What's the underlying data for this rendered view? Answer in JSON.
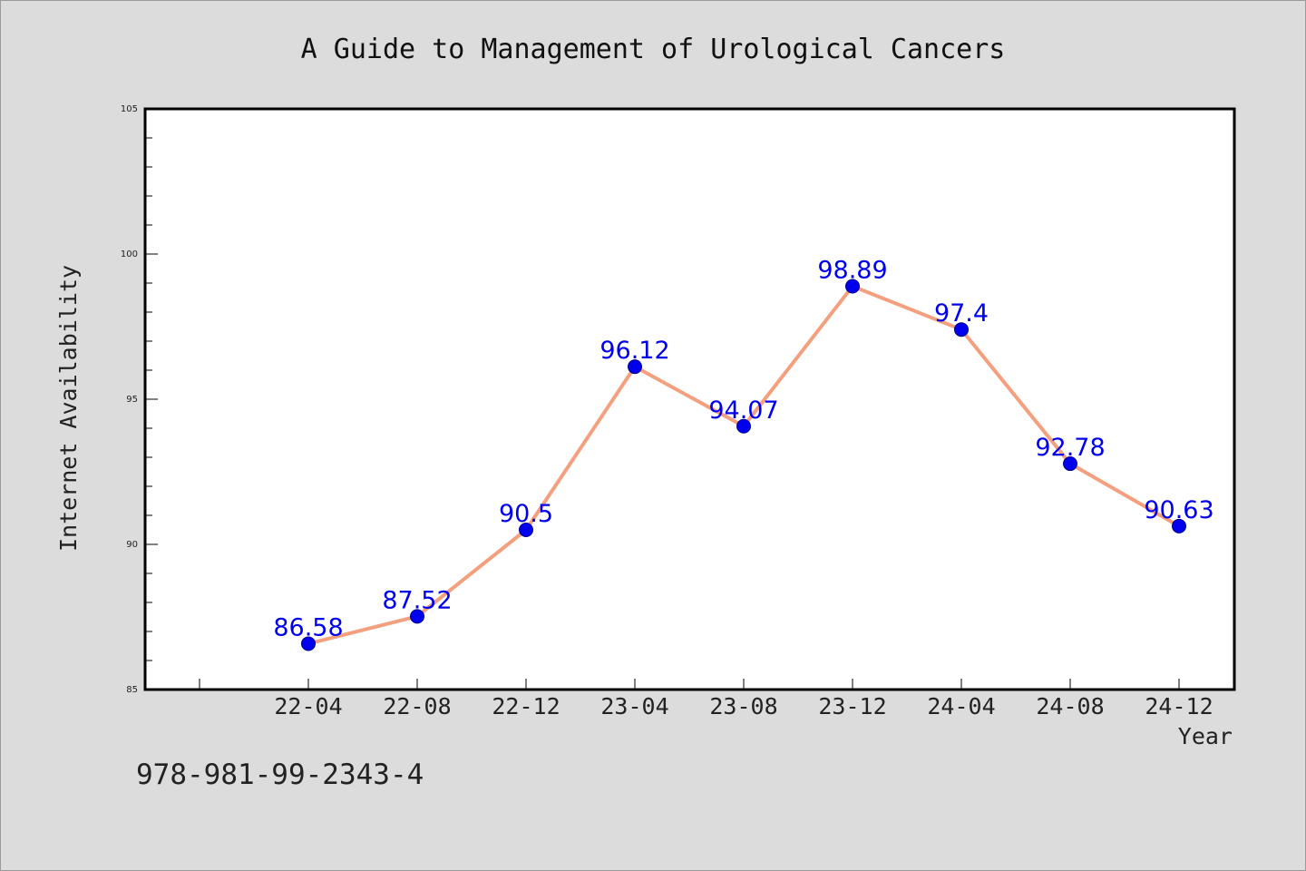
{
  "chart_data": {
    "type": "line",
    "title": "A Guide to Management of Urological Cancers",
    "xlabel": "Year",
    "ylabel": "Internet Availability",
    "categories": [
      "22-04",
      "22-08",
      "22-12",
      "23-04",
      "23-08",
      "23-12",
      "24-04",
      "24-08",
      "24-12"
    ],
    "series": [
      {
        "values": [
          86.58,
          87.52,
          90.5,
          96.12,
          94.07,
          98.89,
          97.4,
          92.78,
          90.63
        ],
        "labels": [
          "86.58",
          "87.52",
          "90.5",
          "96.12",
          "94.07",
          "98.89",
          "97.4",
          "92.78",
          "90.63"
        ],
        "line_color": "#f4a07f",
        "marker_color": "#0000ee",
        "label_color": "#0000ee"
      }
    ],
    "ylim": [
      85,
      105
    ],
    "yticks": [
      "85",
      "90",
      "95",
      "100",
      "105"
    ],
    "grid": false,
    "legend": "none"
  },
  "footer": {
    "isbn": "978-981-99-2343-4"
  },
  "colors": {
    "background": "#dcdcdc",
    "plot_background": "#ffffff",
    "axis": "#000000"
  }
}
